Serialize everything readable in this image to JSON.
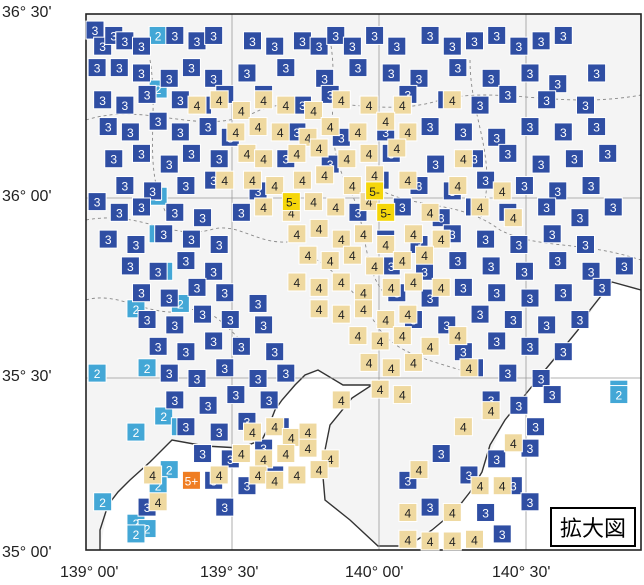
{
  "legend_label": "拡大図",
  "axes": {
    "lat_labels": [
      "36° 30'",
      "36° 00'",
      "35° 30'",
      "35° 00'"
    ],
    "lon_labels": [
      "139° 00'",
      "139° 30'",
      "140° 00'",
      "140° 30'"
    ]
  },
  "colors": {
    "int2": "#43a7d6",
    "int3": "#2f4ea3",
    "int4": "#efd9a0",
    "int5minus": "#f5d60a",
    "int5plus": "#ef7d22",
    "text_dark": "#ffffff",
    "text_light": "#222222"
  },
  "stations": {
    "int2": {
      "label": "2",
      "pts": [
        [
          13,
          4
        ],
        [
          13,
          14
        ],
        [
          13,
          34
        ],
        [
          13,
          41
        ],
        [
          14,
          48
        ],
        [
          9,
          55
        ],
        [
          17,
          54
        ],
        [
          2,
          67
        ],
        [
          11,
          66
        ],
        [
          14,
          75
        ],
        [
          9,
          78
        ],
        [
          17,
          77
        ],
        [
          15,
          85
        ],
        [
          13,
          88
        ],
        [
          3,
          91
        ],
        [
          9,
          95
        ],
        [
          11,
          96
        ],
        [
          9,
          97
        ],
        [
          96,
          70
        ],
        [
          96,
          71
        ]
      ]
    },
    "int3": {
      "label": "3",
      "pts": [
        [
          1,
          3
        ],
        [
          3,
          6
        ],
        [
          5,
          4
        ],
        [
          7,
          5
        ],
        [
          10,
          6
        ],
        [
          16,
          4
        ],
        [
          20,
          5
        ],
        [
          23,
          4
        ],
        [
          30,
          5
        ],
        [
          34,
          6
        ],
        [
          39,
          5
        ],
        [
          42,
          6
        ],
        [
          45,
          4
        ],
        [
          48,
          6
        ],
        [
          52,
          4
        ],
        [
          56,
          6
        ],
        [
          62,
          4
        ],
        [
          66,
          6
        ],
        [
          70,
          5
        ],
        [
          74,
          4
        ],
        [
          78,
          6
        ],
        [
          82,
          5
        ],
        [
          86,
          4
        ],
        [
          2,
          10
        ],
        [
          6,
          10
        ],
        [
          10,
          11
        ],
        [
          15,
          12
        ],
        [
          19,
          10
        ],
        [
          23,
          12
        ],
        [
          29,
          11
        ],
        [
          36,
          10
        ],
        [
          43,
          12
        ],
        [
          49,
          10
        ],
        [
          55,
          11
        ],
        [
          60,
          12
        ],
        [
          67,
          10
        ],
        [
          73,
          12
        ],
        [
          80,
          11
        ],
        [
          85,
          13
        ],
        [
          92,
          11
        ],
        [
          3,
          16
        ],
        [
          7,
          17
        ],
        [
          11,
          15
        ],
        [
          17,
          16
        ],
        [
          21,
          17
        ],
        [
          25,
          15
        ],
        [
          32,
          15
        ],
        [
          39,
          17
        ],
        [
          44,
          15
        ],
        [
          51,
          17
        ],
        [
          58,
          15
        ],
        [
          65,
          16
        ],
        [
          71,
          17
        ],
        [
          76,
          15
        ],
        [
          83,
          16
        ],
        [
          90,
          17
        ],
        [
          4,
          21
        ],
        [
          8,
          22
        ],
        [
          13,
          20
        ],
        [
          17,
          22
        ],
        [
          22,
          21
        ],
        [
          26,
          23
        ],
        [
          38,
          22
        ],
        [
          46,
          23
        ],
        [
          54,
          22
        ],
        [
          62,
          21
        ],
        [
          68,
          22
        ],
        [
          74,
          23
        ],
        [
          80,
          21
        ],
        [
          86,
          22
        ],
        [
          92,
          21
        ],
        [
          5,
          27
        ],
        [
          10,
          26
        ],
        [
          15,
          28
        ],
        [
          19,
          26
        ],
        [
          24,
          27
        ],
        [
          36,
          27
        ],
        [
          44,
          28
        ],
        [
          55,
          26
        ],
        [
          63,
          28
        ],
        [
          70,
          27
        ],
        [
          76,
          26
        ],
        [
          82,
          28
        ],
        [
          88,
          27
        ],
        [
          94,
          26
        ],
        [
          7,
          32
        ],
        [
          12,
          33
        ],
        [
          18,
          32
        ],
        [
          23,
          31
        ],
        [
          31,
          33
        ],
        [
          53,
          31
        ],
        [
          60,
          32
        ],
        [
          66,
          33
        ],
        [
          72,
          31
        ],
        [
          79,
          32
        ],
        [
          85,
          33
        ],
        [
          91,
          32
        ],
        [
          2,
          35
        ],
        [
          6,
          37
        ],
        [
          10,
          36
        ],
        [
          16,
          37
        ],
        [
          21,
          38
        ],
        [
          28,
          37
        ],
        [
          49,
          37
        ],
        [
          57,
          36
        ],
        [
          64,
          38
        ],
        [
          70,
          36
        ],
        [
          76,
          37
        ],
        [
          83,
          36
        ],
        [
          89,
          38
        ],
        [
          95,
          36
        ],
        [
          4,
          42
        ],
        [
          9,
          43
        ],
        [
          14,
          41
        ],
        [
          19,
          42
        ],
        [
          24,
          43
        ],
        [
          54,
          42
        ],
        [
          60,
          43
        ],
        [
          66,
          41
        ],
        [
          72,
          42
        ],
        [
          78,
          43
        ],
        [
          84,
          41
        ],
        [
          90,
          43
        ],
        [
          8,
          47
        ],
        [
          13,
          48
        ],
        [
          18,
          46
        ],
        [
          23,
          48
        ],
        [
          55,
          47
        ],
        [
          61,
          48
        ],
        [
          67,
          46
        ],
        [
          73,
          47
        ],
        [
          79,
          48
        ],
        [
          85,
          46
        ],
        [
          91,
          48
        ],
        [
          97,
          47
        ],
        [
          10,
          52
        ],
        [
          15,
          53
        ],
        [
          20,
          51
        ],
        [
          25,
          52
        ],
        [
          31,
          54
        ],
        [
          56,
          52
        ],
        [
          62,
          53
        ],
        [
          68,
          51
        ],
        [
          74,
          52
        ],
        [
          80,
          53
        ],
        [
          86,
          52
        ],
        [
          93,
          51
        ],
        [
          11,
          57
        ],
        [
          16,
          58
        ],
        [
          21,
          56
        ],
        [
          26,
          57
        ],
        [
          32,
          58
        ],
        [
          59,
          57
        ],
        [
          65,
          58
        ],
        [
          71,
          56
        ],
        [
          77,
          57
        ],
        [
          83,
          58
        ],
        [
          89,
          57
        ],
        [
          13,
          62
        ],
        [
          18,
          63
        ],
        [
          23,
          61
        ],
        [
          28,
          62
        ],
        [
          34,
          63
        ],
        [
          62,
          62
        ],
        [
          68,
          63
        ],
        [
          74,
          61
        ],
        [
          80,
          62
        ],
        [
          86,
          63
        ],
        [
          15,
          67
        ],
        [
          20,
          68
        ],
        [
          25,
          66
        ],
        [
          31,
          68
        ],
        [
          36,
          67
        ],
        [
          70,
          66
        ],
        [
          76,
          67
        ],
        [
          82,
          68
        ],
        [
          16,
          72
        ],
        [
          22,
          73
        ],
        [
          27,
          71
        ],
        [
          33,
          72
        ],
        [
          73,
          72
        ],
        [
          78,
          73
        ],
        [
          84,
          71
        ],
        [
          18,
          77
        ],
        [
          24,
          78
        ],
        [
          29,
          76
        ],
        [
          35,
          77
        ],
        [
          81,
          77
        ],
        [
          21,
          82
        ],
        [
          26,
          83
        ],
        [
          32,
          81
        ],
        [
          64,
          82
        ],
        [
          74,
          83
        ],
        [
          80,
          81
        ],
        [
          23,
          87
        ],
        [
          29,
          88
        ],
        [
          34,
          86
        ],
        [
          58,
          87
        ],
        [
          69,
          86
        ],
        [
          77,
          88
        ],
        [
          11,
          92
        ],
        [
          25,
          92
        ],
        [
          62,
          92
        ],
        [
          72,
          93
        ],
        [
          80,
          91
        ],
        [
          75,
          97
        ]
      ]
    },
    "int4": {
      "label": "4",
      "pts": [
        [
          20,
          17
        ],
        [
          24,
          16
        ],
        [
          28,
          18
        ],
        [
          32,
          16
        ],
        [
          36,
          17
        ],
        [
          41,
          18
        ],
        [
          46,
          16
        ],
        [
          51,
          17
        ],
        [
          57,
          17
        ],
        [
          66,
          16
        ],
        [
          27,
          22
        ],
        [
          31,
          21
        ],
        [
          35,
          22
        ],
        [
          40,
          23
        ],
        [
          44,
          21
        ],
        [
          49,
          22
        ],
        [
          54,
          20
        ],
        [
          58,
          22
        ],
        [
          29,
          26
        ],
        [
          32,
          27
        ],
        [
          38,
          26
        ],
        [
          42,
          25
        ],
        [
          47,
          27
        ],
        [
          51,
          26
        ],
        [
          56,
          25
        ],
        [
          68,
          27
        ],
        [
          25,
          31
        ],
        [
          30,
          31
        ],
        [
          34,
          32
        ],
        [
          39,
          31
        ],
        [
          43,
          30
        ],
        [
          48,
          32
        ],
        [
          52,
          30
        ],
        [
          58,
          31
        ],
        [
          67,
          32
        ],
        [
          75,
          33
        ],
        [
          32,
          36
        ],
        [
          37,
          37
        ],
        [
          41,
          35
        ],
        [
          45,
          36
        ],
        [
          51,
          35
        ],
        [
          62,
          37
        ],
        [
          71,
          36
        ],
        [
          77,
          38
        ],
        [
          38,
          41
        ],
        [
          42,
          40
        ],
        [
          46,
          42
        ],
        [
          50,
          41
        ],
        [
          54,
          43
        ],
        [
          59,
          41
        ],
        [
          64,
          42
        ],
        [
          40,
          45
        ],
        [
          44,
          46
        ],
        [
          48,
          45
        ],
        [
          52,
          47
        ],
        [
          57,
          46
        ],
        [
          61,
          45
        ],
        [
          38,
          50
        ],
        [
          42,
          51
        ],
        [
          46,
          50
        ],
        [
          50,
          52
        ],
        [
          55,
          51
        ],
        [
          59,
          50
        ],
        [
          64,
          51
        ],
        [
          42,
          55
        ],
        [
          46,
          56
        ],
        [
          50,
          55
        ],
        [
          54,
          57
        ],
        [
          58,
          56
        ],
        [
          49,
          60
        ],
        [
          53,
          61
        ],
        [
          57,
          60
        ],
        [
          62,
          62
        ],
        [
          67,
          60
        ],
        [
          51,
          65
        ],
        [
          55,
          66
        ],
        [
          59,
          65
        ],
        [
          69,
          66
        ],
        [
          53,
          70
        ],
        [
          57,
          71
        ],
        [
          46,
          72
        ],
        [
          30,
          78
        ],
        [
          34,
          77
        ],
        [
          37,
          79
        ],
        [
          40,
          78
        ],
        [
          28,
          82
        ],
        [
          32,
          83
        ],
        [
          36,
          82
        ],
        [
          40,
          81
        ],
        [
          44,
          83
        ],
        [
          31,
          86
        ],
        [
          34,
          87
        ],
        [
          38,
          86
        ],
        [
          42,
          85
        ],
        [
          12,
          86
        ],
        [
          13,
          91
        ],
        [
          60,
          85
        ],
        [
          68,
          77
        ],
        [
          73,
          74
        ],
        [
          77,
          80
        ],
        [
          71,
          88
        ],
        [
          75,
          88
        ],
        [
          58,
          93
        ],
        [
          66,
          93
        ],
        [
          58,
          98
        ],
        [
          62,
          99
        ],
        [
          66,
          99
        ],
        [
          70,
          98
        ],
        [
          24,
          86
        ]
      ]
    },
    "int5minus": {
      "label": "5-",
      "pts": [
        [
          37,
          35
        ],
        [
          52,
          33
        ],
        [
          54,
          37
        ]
      ]
    },
    "int5plus": {
      "label": "5+",
      "pts": [
        [
          19,
          87
        ]
      ]
    }
  }
}
